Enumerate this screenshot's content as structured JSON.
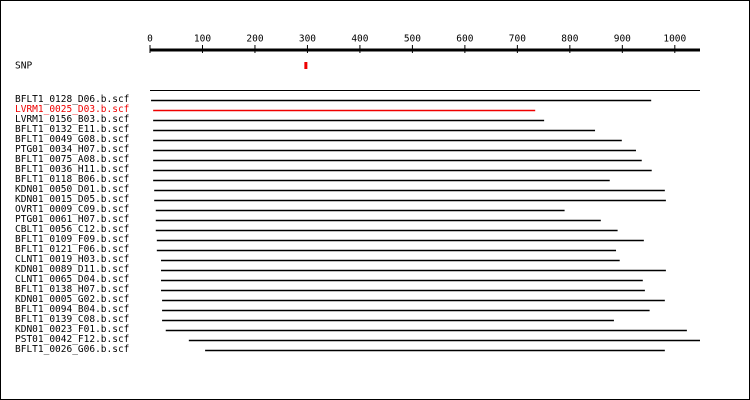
{
  "chart_data": {
    "type": "range",
    "xlim": [
      0,
      1048
    ],
    "xticks": [
      0,
      100,
      200,
      300,
      400,
      500,
      600,
      700,
      800,
      900,
      1000
    ],
    "snp": {
      "label": "SNP",
      "position": 297,
      "color": "#ee0000"
    },
    "reads": [
      {
        "name": "BFLT1_0128_D06.b.scf",
        "start": 2,
        "end": 955,
        "color": "#000000"
      },
      {
        "name": "LVRM1_0025_D03.b.scf",
        "start": 6,
        "end": 734,
        "color": "#ee0000"
      },
      {
        "name": "LVRM1_0156_B03.b.scf",
        "start": 6,
        "end": 751,
        "color": "#000000"
      },
      {
        "name": "BFLT1_0132_E11.b.scf",
        "start": 6,
        "end": 848,
        "color": "#000000"
      },
      {
        "name": "BFLT1_0049_G08.b.scf",
        "start": 6,
        "end": 899,
        "color": "#000000"
      },
      {
        "name": "PTG01_0034_H07.b.scf",
        "start": 6,
        "end": 926,
        "color": "#000000"
      },
      {
        "name": "BFLT1_0075_A08.b.scf",
        "start": 6,
        "end": 937,
        "color": "#000000"
      },
      {
        "name": "BFLT1_0036_H11.b.scf",
        "start": 6,
        "end": 956,
        "color": "#000000"
      },
      {
        "name": "BFLT1_0118_B06.b.scf",
        "start": 6,
        "end": 876,
        "color": "#000000"
      },
      {
        "name": "KDN01_0050_D01.b.scf",
        "start": 8,
        "end": 981,
        "color": "#000000"
      },
      {
        "name": "KDN01_0015_D05.b.scf",
        "start": 8,
        "end": 983,
        "color": "#000000"
      },
      {
        "name": "OVRT1_0009_C09.b.scf",
        "start": 11,
        "end": 790,
        "color": "#000000"
      },
      {
        "name": "PTG01_0061_H07.b.scf",
        "start": 11,
        "end": 859,
        "color": "#000000"
      },
      {
        "name": "CBLT1_0056_C12.b.scf",
        "start": 11,
        "end": 891,
        "color": "#000000"
      },
      {
        "name": "BFLT1_0109_F09.b.scf",
        "start": 13,
        "end": 941,
        "color": "#000000"
      },
      {
        "name": "BFLT1_0121_F06.b.scf",
        "start": 13,
        "end": 888,
        "color": "#000000"
      },
      {
        "name": "CLNT1_0019_H03.b.scf",
        "start": 21,
        "end": 895,
        "color": "#000000"
      },
      {
        "name": "KDN01_0089_D11.b.scf",
        "start": 21,
        "end": 983,
        "color": "#000000"
      },
      {
        "name": "CLNT1_0065_D04.b.scf",
        "start": 21,
        "end": 939,
        "color": "#000000"
      },
      {
        "name": "BFLT1_0138_H07.b.scf",
        "start": 21,
        "end": 943,
        "color": "#000000"
      },
      {
        "name": "KDN01_0005_G02.b.scf",
        "start": 23,
        "end": 981,
        "color": "#000000"
      },
      {
        "name": "BFLT1_0094_B04.b.scf",
        "start": 23,
        "end": 952,
        "color": "#000000"
      },
      {
        "name": "BFLT1_0139_C08.b.scf",
        "start": 23,
        "end": 884,
        "color": "#000000"
      },
      {
        "name": "KDN01_0023_F01.b.scf",
        "start": 30,
        "end": 1023,
        "color": "#000000"
      },
      {
        "name": "PST01_0042_F12.b.scf",
        "start": 74,
        "end": 1048,
        "color": "#000000"
      },
      {
        "name": "BFLT1_0026_G06.b.scf",
        "start": 105,
        "end": 981,
        "color": "#000000"
      }
    ]
  }
}
